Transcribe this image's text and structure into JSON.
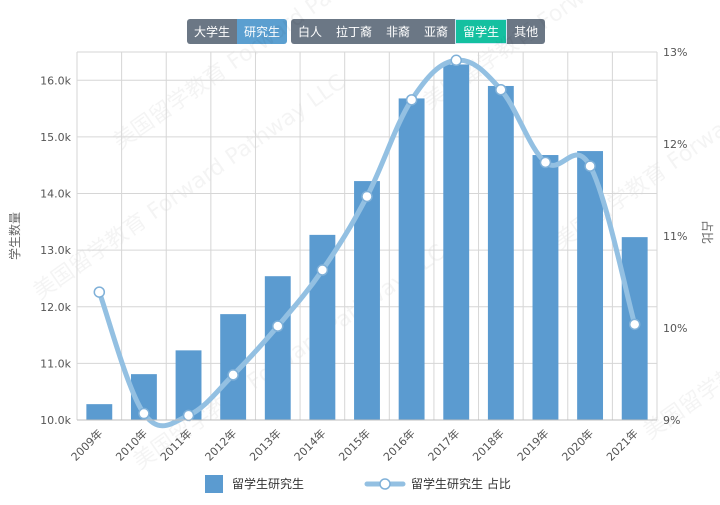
{
  "level_toggle": {
    "options": [
      "大学生",
      "研究生"
    ],
    "selected": "研究生"
  },
  "group_toggle": {
    "options": [
      "白人",
      "拉丁裔",
      "非裔",
      "亚裔",
      "留学生",
      "其他"
    ],
    "selected": "留学生"
  },
  "colors": {
    "bar": "#5b9bd0",
    "line": "#93c0e2",
    "toggle_bg": "#6b7785",
    "toggle_blue": "#5b9fd0",
    "toggle_teal": "#14c0a0"
  },
  "chart_data": {
    "type": "bar+line",
    "categories": [
      "2009年",
      "2010年",
      "2011年",
      "2012年",
      "2013年",
      "2014年",
      "2015年",
      "2016年",
      "2017年",
      "2018年",
      "2019年",
      "2020年",
      "2021年"
    ],
    "series": [
      {
        "name": "留学生研究生",
        "type": "bar",
        "axis": "left",
        "values": [
          10280,
          10810,
          11230,
          11870,
          12540,
          13270,
          14220,
          15680,
          16280,
          15900,
          14680,
          14750,
          13230
        ]
      },
      {
        "name": "留学生研究生 占比",
        "type": "line",
        "axis": "right",
        "values": [
          10.39,
          9.07,
          9.05,
          9.49,
          10.02,
          10.63,
          11.43,
          12.48,
          12.91,
          12.59,
          11.8,
          11.76,
          10.04
        ]
      }
    ],
    "ylabel_left": "学生数量",
    "ylabel_right": "占比",
    "ylim_left": [
      10000,
      16500
    ],
    "ylim_right": [
      9,
      13
    ],
    "yticks_left": [
      "10.0k",
      "11.0k",
      "12.0k",
      "13.0k",
      "14.0k",
      "15.0k",
      "16.0k"
    ],
    "yticks_right": [
      "9%",
      "10%",
      "11%",
      "12%",
      "13%"
    ],
    "grid": true,
    "legend_position": "bottom-center",
    "watermark": "美国留学教育 Forward Pathway LLC"
  }
}
